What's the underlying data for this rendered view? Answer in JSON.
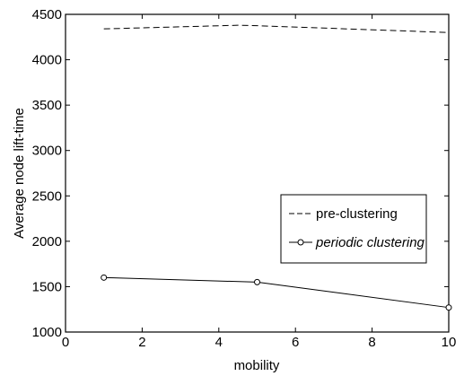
{
  "chart_data": {
    "type": "line",
    "title": "",
    "xlabel": "mobility",
    "ylabel": "Average node lift-time",
    "xlim": [
      0,
      10
    ],
    "ylim": [
      1000,
      4500
    ],
    "xticks": [
      0,
      2,
      4,
      6,
      8,
      10
    ],
    "yticks": [
      1000,
      1500,
      2000,
      2500,
      3000,
      3500,
      4000,
      4500
    ],
    "grid": false,
    "legend_position": "right",
    "series": [
      {
        "name": "pre-clustering",
        "line_style": "dashed",
        "marker": "none",
        "x": [
          1,
          4.5,
          5,
          10
        ],
        "y": [
          4340,
          4380,
          4375,
          4300
        ]
      },
      {
        "name": "periodic clustering",
        "line_style": "solid",
        "marker": "circle",
        "x": [
          1,
          5,
          10
        ],
        "y": [
          1600,
          1550,
          1270
        ]
      }
    ]
  }
}
